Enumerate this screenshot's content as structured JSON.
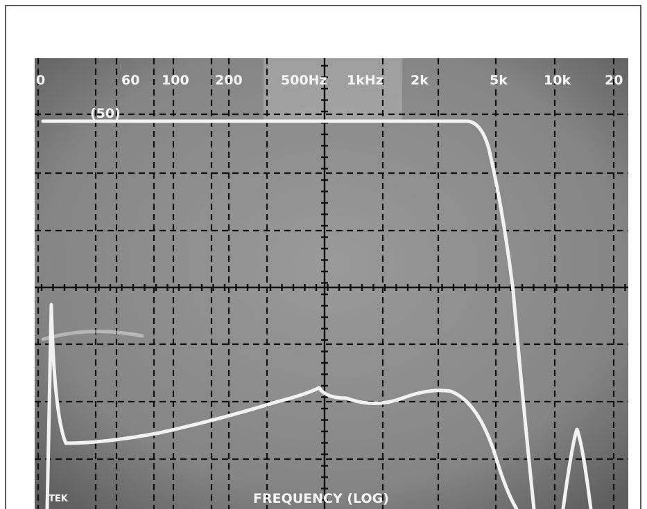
{
  "scale_labels": [
    "0",
    "60",
    "100",
    "200",
    "500Hz",
    "1kHz",
    "2k",
    "5k",
    "10k",
    "20"
  ],
  "marker": "(50)",
  "brand": "TEK",
  "x_axis_title": "FREQUENCY (LOG)"
}
